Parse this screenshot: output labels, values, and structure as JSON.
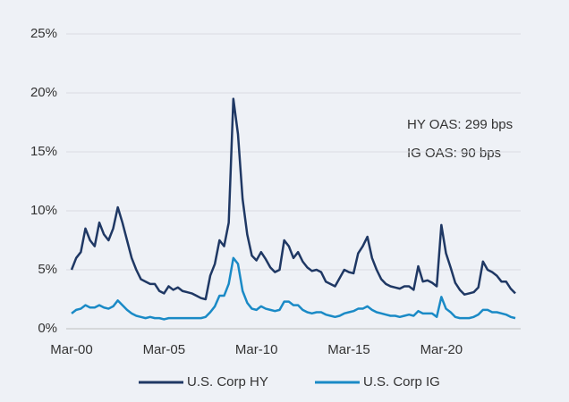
{
  "chart_data": {
    "type": "line",
    "annotations": [
      "HY OAS: 299 bps",
      "IG OAS: 90 bps"
    ],
    "categories": [
      "Mar-00",
      null,
      null,
      null,
      null,
      null,
      null,
      null,
      null,
      null,
      null,
      null,
      null,
      null,
      null,
      null,
      null,
      null,
      null,
      null,
      "Mar-05",
      null,
      null,
      null,
      null,
      null,
      null,
      null,
      null,
      null,
      null,
      null,
      null,
      null,
      null,
      null,
      null,
      null,
      null,
      null,
      "Mar-10",
      null,
      null,
      null,
      null,
      null,
      null,
      null,
      null,
      null,
      null,
      null,
      null,
      null,
      null,
      null,
      null,
      null,
      null,
      null,
      "Mar-15",
      null,
      null,
      null,
      null,
      null,
      null,
      null,
      null,
      null,
      null,
      null,
      null,
      null,
      null,
      null,
      null,
      null,
      null,
      null,
      "Mar-20",
      null,
      null,
      null,
      null,
      null,
      null,
      null,
      null,
      null,
      null,
      null,
      null,
      null,
      null,
      null,
      null
    ],
    "series": [
      {
        "name": "U.S. Corp HY",
        "color": "#1f3864",
        "values": [
          5.0,
          6.0,
          6.5,
          8.5,
          7.5,
          7.0,
          9.0,
          8.0,
          7.5,
          8.5,
          10.3,
          9.0,
          7.5,
          6.0,
          5.0,
          4.2,
          4.0,
          3.8,
          3.8,
          3.2,
          3.0,
          3.6,
          3.3,
          3.5,
          3.2,
          3.1,
          3.0,
          2.8,
          2.6,
          2.5,
          4.5,
          5.5,
          7.5,
          7.0,
          9.0,
          19.5,
          16.5,
          11.0,
          8.0,
          6.2,
          5.8,
          6.5,
          5.9,
          5.2,
          4.8,
          5.0,
          7.5,
          7.0,
          6.0,
          6.5,
          5.7,
          5.2,
          4.9,
          5.0,
          4.8,
          4.0,
          3.8,
          3.6,
          4.3,
          5.0,
          4.8,
          4.7,
          6.4,
          7.0,
          7.8,
          6.0,
          5.0,
          4.2,
          3.8,
          3.6,
          3.5,
          3.4,
          3.6,
          3.6,
          3.3,
          5.3,
          4.0,
          4.1,
          3.9,
          3.6,
          8.8,
          6.4,
          5.2,
          3.9,
          3.3,
          2.9,
          3.0,
          3.1,
          3.5,
          5.7,
          5.0,
          4.8,
          4.5,
          4.0,
          4.0,
          3.4,
          3.0
        ]
      },
      {
        "name": "U.S. Corp IG",
        "color": "#1a8ac6",
        "values": [
          1.3,
          1.6,
          1.7,
          2.0,
          1.8,
          1.8,
          2.0,
          1.8,
          1.7,
          1.9,
          2.4,
          2.0,
          1.6,
          1.3,
          1.1,
          1.0,
          0.9,
          1.0,
          0.9,
          0.9,
          0.8,
          0.9,
          0.9,
          0.9,
          0.9,
          0.9,
          0.9,
          0.9,
          0.9,
          1.0,
          1.4,
          1.9,
          2.8,
          2.8,
          3.8,
          6.0,
          5.5,
          3.2,
          2.2,
          1.7,
          1.6,
          1.9,
          1.7,
          1.6,
          1.5,
          1.6,
          2.3,
          2.3,
          2.0,
          2.0,
          1.6,
          1.4,
          1.3,
          1.4,
          1.4,
          1.2,
          1.1,
          1.0,
          1.1,
          1.3,
          1.4,
          1.5,
          1.7,
          1.7,
          1.9,
          1.6,
          1.4,
          1.3,
          1.2,
          1.1,
          1.1,
          1.0,
          1.1,
          1.2,
          1.1,
          1.5,
          1.3,
          1.3,
          1.3,
          1.0,
          2.7,
          1.7,
          1.4,
          1.0,
          0.9,
          0.9,
          0.9,
          1.0,
          1.2,
          1.6,
          1.6,
          1.4,
          1.4,
          1.3,
          1.2,
          1.0,
          0.9
        ]
      }
    ],
    "ylim": [
      0,
      25
    ],
    "yticks": [
      {
        "value": 0,
        "label": "0%"
      },
      {
        "value": 5,
        "label": "5%"
      },
      {
        "value": 10,
        "label": "10%"
      },
      {
        "value": 15,
        "label": "15%"
      },
      {
        "value": 20,
        "label": "20%"
      },
      {
        "value": 25,
        "label": "25%"
      }
    ],
    "grid": true,
    "legend": "bottom"
  }
}
